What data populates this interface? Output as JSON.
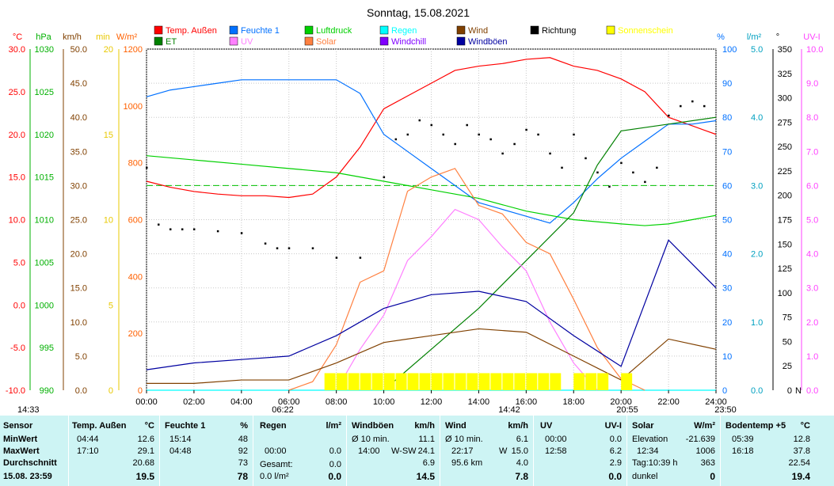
{
  "chart_data": {
    "type": "line",
    "title": "Sonntag, 15.08.2021",
    "x_tick_labels": [
      "00:00",
      "02:00",
      "04:00",
      "06:00",
      "08:00",
      "10:00",
      "12:00",
      "14:00",
      "16:00",
      "18:00",
      "20:00",
      "22:00",
      "24:00"
    ],
    "axes": {
      "temp": {
        "unit": "°C",
        "ticks": [
          "30.0",
          "25.0",
          "20.0",
          "15.0",
          "10.0",
          "5.0",
          "0.0",
          "-5.0",
          "-10.0"
        ],
        "range": [
          -10,
          30
        ],
        "color": "#ff0000"
      },
      "pressure": {
        "unit": "hPa",
        "ticks": [
          "1030",
          "1025",
          "1020",
          "1015",
          "1010",
          "1005",
          "1000",
          "995",
          "990"
        ],
        "range": [
          990,
          1030
        ],
        "color": "#00b000"
      },
      "wind": {
        "unit": "km/h",
        "ticks": [
          "50.0",
          "45.0",
          "40.0",
          "35.0",
          "30.0",
          "25.0",
          "20.0",
          "15.0",
          "10.0",
          "5.0",
          "0.0"
        ],
        "range": [
          0,
          50
        ],
        "color": "#804000"
      },
      "sunshine": {
        "unit": "min",
        "ticks": [
          "20",
          "15",
          "10",
          "5",
          "0"
        ],
        "range": [
          0,
          20
        ],
        "color": "#e8c800"
      },
      "solar": {
        "unit": "W/m²",
        "ticks": [
          "1200",
          "1000",
          "800",
          "600",
          "400",
          "200",
          "0"
        ],
        "range": [
          0,
          1200
        ],
        "color": "#ff6000"
      },
      "humidity": {
        "unit": "%",
        "ticks": [
          "100",
          "90",
          "80",
          "70",
          "60",
          "50",
          "40",
          "30",
          "20",
          "10",
          "0"
        ],
        "range": [
          0,
          100
        ],
        "color": "#0070ff"
      },
      "rain": {
        "unit": "l/m²",
        "ticks": [
          "5.0",
          "4.0",
          "3.0",
          "2.0",
          "1.0",
          "0.0"
        ],
        "range": [
          0,
          5
        ],
        "color": "#00a0c0"
      },
      "direction": {
        "unit": "°",
        "ticks": [
          "350",
          "325",
          "300",
          "275",
          "250",
          "225",
          "200",
          "175",
          "150",
          "125",
          "100",
          "75",
          "50",
          "25",
          "0"
        ],
        "range": [
          0,
          360
        ],
        "color": "#000000"
      },
      "uv": {
        "unit": "UV-I",
        "ticks": [
          "10.0",
          "9.0",
          "8.0",
          "7.0",
          "6.0",
          "5.0",
          "4.0",
          "3.0",
          "2.0",
          "1.0",
          "0.0"
        ],
        "range": [
          0,
          10
        ],
        "color": "#ff40ff"
      }
    },
    "direction_zero_label": "N",
    "legend": [
      {
        "label": "Temp. Außen",
        "color": "#ff0000"
      },
      {
        "label": "Feuchte 1",
        "color": "#0070ff"
      },
      {
        "label": "Luftdruck",
        "color": "#00d000"
      },
      {
        "label": "Regen",
        "color": "#00ffff"
      },
      {
        "label": "Wind",
        "color": "#804000"
      },
      {
        "label": "Richtung",
        "color": "#000000"
      },
      {
        "label": "Sonnenschein",
        "color": "#ffff00"
      },
      {
        "label": "ET",
        "color": "#008000"
      },
      {
        "label": "UV",
        "color": "#ff80ff"
      },
      {
        "label": "Solar",
        "color": "#ff8040"
      },
      {
        "label": "Windchill",
        "color": "#8000ff"
      },
      {
        "label": "Windböen",
        "color": "#0000a0"
      }
    ],
    "series": [
      {
        "name": "Temp. Außen",
        "axis": "temp",
        "x": [
          0,
          1,
          2,
          3,
          4,
          5,
          6,
          7,
          8,
          9,
          10,
          11,
          12,
          13,
          14,
          15,
          16,
          17,
          18,
          19,
          20,
          21,
          22,
          23,
          24
        ],
        "values": [
          14.5,
          13.8,
          13.3,
          13.0,
          12.8,
          12.8,
          12.6,
          13.0,
          15.0,
          18.5,
          23.0,
          24.5,
          26.0,
          27.5,
          28.0,
          28.3,
          28.8,
          29.0,
          28.0,
          27.5,
          26.5,
          25.0,
          22.0,
          21.0,
          20.0
        ]
      },
      {
        "name": "Feuchte 1",
        "axis": "humidity",
        "x": [
          0,
          1,
          2,
          3,
          4,
          5,
          6,
          7,
          8,
          9,
          10,
          11,
          12,
          13,
          14,
          15,
          16,
          17,
          18,
          19,
          20,
          21,
          22,
          23,
          24
        ],
        "values": [
          86,
          88,
          89,
          90,
          91,
          91,
          91,
          91,
          91,
          87,
          75,
          70,
          65,
          60,
          55,
          53,
          51,
          49,
          55,
          62,
          68,
          73,
          78,
          78,
          79
        ]
      },
      {
        "name": "Luftdruck",
        "axis": "pressure",
        "x": [
          0,
          2,
          4,
          6,
          8,
          10,
          12,
          14,
          16,
          18,
          20,
          21,
          22,
          23,
          24
        ],
        "values": [
          1017.5,
          1017.0,
          1016.5,
          1016.0,
          1015.5,
          1014.5,
          1013.5,
          1012.5,
          1011.0,
          1010.0,
          1009.5,
          1009.3,
          1009.5,
          1010.0,
          1010.5
        ]
      },
      {
        "name": "ET",
        "axis": "rain",
        "x": [
          10,
          12,
          14,
          16,
          18,
          19,
          20,
          22,
          24
        ],
        "values": [
          0.0,
          0.6,
          1.2,
          1.9,
          2.6,
          3.3,
          3.8,
          3.9,
          4.0
        ]
      },
      {
        "name": "Regen",
        "axis": "rain",
        "x": [
          0,
          24
        ],
        "values": [
          0,
          0
        ]
      },
      {
        "name": "Solar",
        "axis": "solar",
        "x": [
          6,
          7,
          8,
          9,
          10,
          11,
          12,
          13,
          14,
          15,
          16,
          17,
          18,
          19,
          20,
          21
        ],
        "values": [
          0,
          30,
          160,
          380,
          420,
          700,
          750,
          780,
          650,
          620,
          520,
          480,
          320,
          150,
          40,
          0
        ]
      },
      {
        "name": "UV",
        "axis": "uv",
        "x": [
          8,
          9,
          10,
          11,
          12,
          13,
          14,
          15,
          16,
          17,
          18,
          19
        ],
        "values": [
          0,
          1.2,
          2.2,
          3.8,
          4.5,
          5.3,
          5.0,
          4.2,
          3.5,
          2.0,
          0.8,
          0
        ]
      },
      {
        "name": "Wind",
        "axis": "wind",
        "x": [
          0,
          2,
          4,
          6,
          8,
          10,
          12,
          14,
          16,
          18,
          20,
          22,
          24
        ],
        "values": [
          1.0,
          1.0,
          1.5,
          1.5,
          4.0,
          7.0,
          8.0,
          9.0,
          8.5,
          5.0,
          1.5,
          7.5,
          6.0
        ]
      },
      {
        "name": "Windböen",
        "axis": "wind",
        "x": [
          0,
          2,
          4,
          6,
          8,
          10,
          12,
          14,
          16,
          18,
          20,
          22,
          24
        ],
        "values": [
          3.0,
          4.0,
          4.5,
          5.0,
          8.0,
          12.0,
          14.0,
          14.5,
          13.0,
          8.0,
          3.5,
          22.0,
          15.0
        ]
      },
      {
        "name": "Richtung",
        "axis": "direction",
        "type": "scatter",
        "x": [
          0,
          0.5,
          1,
          1.5,
          2,
          3,
          4,
          5,
          5.5,
          6,
          7,
          8,
          9,
          10,
          10.5,
          11,
          11.5,
          12,
          12.5,
          13,
          13.5,
          14,
          14.5,
          15,
          15.5,
          16,
          16.5,
          17,
          17.5,
          18,
          18.5,
          19,
          19.5,
          20,
          20.5,
          21,
          21.5,
          22,
          22.5,
          23,
          23.5
        ],
        "values": [
          235,
          175,
          170,
          170,
          170,
          168,
          166,
          155,
          150,
          150,
          150,
          140,
          140,
          225,
          265,
          270,
          285,
          280,
          270,
          260,
          280,
          270,
          265,
          250,
          260,
          275,
          270,
          250,
          235,
          270,
          245,
          230,
          215,
          240,
          230,
          220,
          235,
          290,
          300,
          305,
          300
        ]
      },
      {
        "name": "Sonnenschein",
        "axis": "sunshine",
        "type": "bar",
        "x": [
          7.5,
          8,
          8.5,
          9,
          9.5,
          10,
          10.5,
          11,
          11.5,
          12,
          12.5,
          13,
          13.5,
          14,
          14.5,
          15,
          15.5,
          16,
          16.5,
          17,
          18,
          18.5,
          19,
          20
        ],
        "values": [
          1,
          1,
          1,
          1,
          1,
          1,
          1,
          1,
          1,
          1,
          1,
          1,
          1,
          1,
          1,
          1,
          1,
          1,
          1,
          1,
          1,
          1,
          1,
          1
        ]
      }
    ],
    "reference_line": {
      "axis": "rain",
      "value": 3.0,
      "color": "#00c000"
    },
    "markers": [
      "14:33",
      "06:22",
      "14:42",
      "20:55",
      "23:50"
    ]
  },
  "stats": {
    "row_labels": [
      "Sensor",
      "MinWert",
      "MaxWert",
      "Durchschnitt",
      "15.08.  23:59"
    ],
    "temp": {
      "head": "Temp. Außen",
      "unit": "°C",
      "min_time": "04:44",
      "min": "12.6",
      "max_time": "17:10",
      "max": "29.1",
      "avg": "20.68",
      "now": "19.5"
    },
    "hum": {
      "head": "Feuchte 1",
      "unit": "%",
      "min_time": "15:14",
      "min": "48",
      "max_time": "04:48",
      "max": "92",
      "avg": "73",
      "now": "78"
    },
    "rain": {
      "head": "Regen",
      "unit": "l/m²",
      "r1l": "00:00",
      "r1": "0.0",
      "r2l": "Gesamt:",
      "r2": "0.0",
      "r3l": "0.0 l/m²",
      "now": "0.0"
    },
    "gust": {
      "head": "Windböen",
      "unit": "km/h",
      "r1l": "Ø 10 min.",
      "r1": "11.1",
      "r2l": "14:00",
      "r2m": "W-SW",
      "r2": "24.1",
      "r3": "6.9",
      "now": "14.5"
    },
    "wind": {
      "head": "Wind",
      "unit": "km/h",
      "r1l": "Ø 10 min.",
      "r1": "6.1",
      "r2l": "22:17",
      "r2m": "W",
      "r2": "15.0",
      "r3l": "95.6 km",
      "r3": "4.0",
      "now": "7.8"
    },
    "uv": {
      "head": "UV",
      "unit": "UV-I",
      "r1l": "00:00",
      "r1": "0.0",
      "r2l": "12:58",
      "r2": "6.2",
      "r3": "2.9",
      "now": "0.0"
    },
    "solar": {
      "head": "Solar",
      "unit": "W/m²",
      "r1l": "Elevation",
      "r1": "-21.639",
      "r2l": "12:34",
      "r2": "1006",
      "r3l": "Tag:10:39 h",
      "r3": "363",
      "r4l": "dunkel",
      "now": "0"
    },
    "soil": {
      "head": "Bodentemp +5",
      "unit": "°C",
      "min_time": "05:39",
      "min": "12.8",
      "max_time": "16:18",
      "max": "37.8",
      "avg": "22.54",
      "now": "19.4"
    }
  }
}
